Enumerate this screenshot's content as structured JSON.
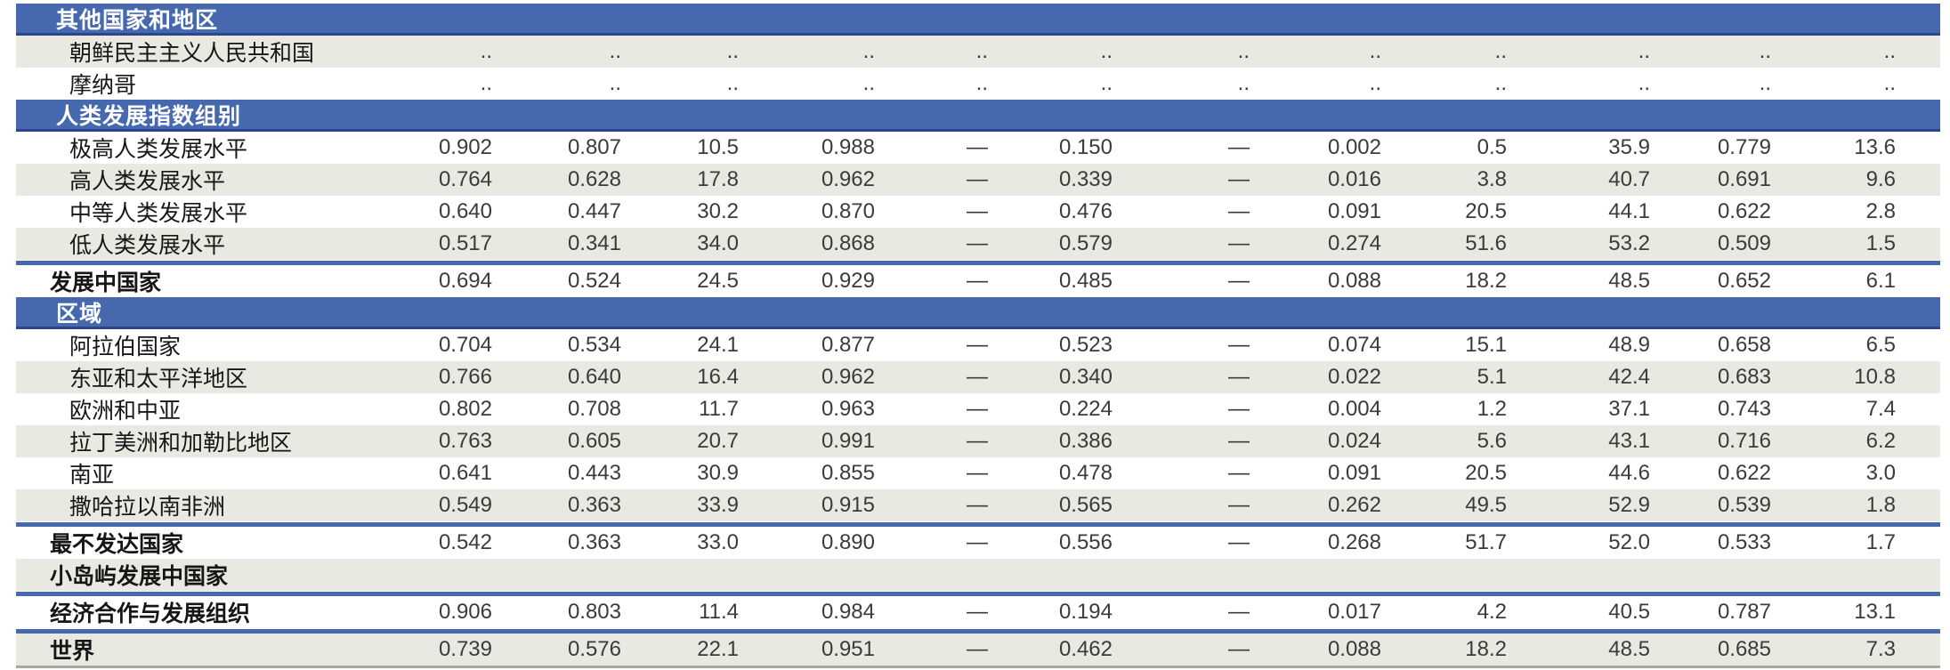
{
  "colors": {
    "header_blue": "#4568af",
    "header_blue_dark": "#2b4689",
    "row_shade": "#e9e8e1",
    "rule_blue": "#4568af",
    "bottom_border": "#a8a89e"
  },
  "table": {
    "columns_count": 12,
    "rows": [
      {
        "type": "section",
        "label": "其他国家和地区"
      },
      {
        "type": "data",
        "label": "朝鲜民主主义人民共和国",
        "rank": "..",
        "bold": false,
        "shaded": true,
        "rule_above": false,
        "values": [
          "..",
          "..",
          "..",
          "..",
          "..",
          "..",
          "..",
          "..",
          "..",
          "..",
          "..",
          ".."
        ]
      },
      {
        "type": "data",
        "label": "摩纳哥",
        "rank": "..",
        "bold": false,
        "shaded": false,
        "rule_above": false,
        "values": [
          "..",
          "..",
          "..",
          "..",
          "..",
          "..",
          "..",
          "..",
          "..",
          "..",
          "..",
          ".."
        ]
      },
      {
        "type": "section",
        "label": "人类发展指数组别"
      },
      {
        "type": "data",
        "label": "极高人类发展水平",
        "rank": "",
        "bold": false,
        "shaded": false,
        "rule_above": false,
        "values": [
          "0.902",
          "0.807",
          "10.5",
          "0.988",
          "—",
          "0.150",
          "—",
          "0.002",
          "0.5",
          "35.9",
          "0.779",
          "13.6"
        ]
      },
      {
        "type": "data",
        "label": "高人类发展水平",
        "rank": "",
        "bold": false,
        "shaded": true,
        "rule_above": false,
        "values": [
          "0.764",
          "0.628",
          "17.8",
          "0.962",
          "—",
          "0.339",
          "—",
          "0.016",
          "3.8",
          "40.7",
          "0.691",
          "9.6"
        ]
      },
      {
        "type": "data",
        "label": "中等人类发展水平",
        "rank": "",
        "bold": false,
        "shaded": false,
        "rule_above": false,
        "values": [
          "0.640",
          "0.447",
          "30.2",
          "0.870",
          "—",
          "0.476",
          "—",
          "0.091",
          "20.5",
          "44.1",
          "0.622",
          "2.8"
        ]
      },
      {
        "type": "data",
        "label": "低人类发展水平",
        "rank": "",
        "bold": false,
        "shaded": true,
        "rule_above": false,
        "values": [
          "0.517",
          "0.341",
          "34.0",
          "0.868",
          "—",
          "0.579",
          "—",
          "0.274",
          "51.6",
          "53.2",
          "0.509",
          "1.5"
        ]
      },
      {
        "type": "data",
        "label": "发展中国家",
        "rank": "",
        "bold": true,
        "shaded": false,
        "rule_above": true,
        "values": [
          "0.694",
          "0.524",
          "24.5",
          "0.929",
          "—",
          "0.485",
          "—",
          "0.088",
          "18.2",
          "48.5",
          "0.652",
          "6.1"
        ]
      },
      {
        "type": "section",
        "label": "区域"
      },
      {
        "type": "data",
        "label": "阿拉伯国家",
        "rank": "",
        "bold": false,
        "shaded": false,
        "rule_above": false,
        "values": [
          "0.704",
          "0.534",
          "24.1",
          "0.877",
          "—",
          "0.523",
          "—",
          "0.074",
          "15.1",
          "48.9",
          "0.658",
          "6.5"
        ]
      },
      {
        "type": "data",
        "label": "东亚和太平洋地区",
        "rank": "",
        "bold": false,
        "shaded": true,
        "rule_above": false,
        "values": [
          "0.766",
          "0.640",
          "16.4",
          "0.962",
          "—",
          "0.340",
          "—",
          "0.022",
          "5.1",
          "42.4",
          "0.683",
          "10.8"
        ]
      },
      {
        "type": "data",
        "label": "欧洲和中亚",
        "rank": "",
        "bold": false,
        "shaded": false,
        "rule_above": false,
        "values": [
          "0.802",
          "0.708",
          "11.7",
          "0.963",
          "—",
          "0.224",
          "—",
          "0.004",
          "1.2",
          "37.1",
          "0.743",
          "7.4"
        ]
      },
      {
        "type": "data",
        "label": "拉丁美洲和加勒比地区",
        "rank": "",
        "bold": false,
        "shaded": true,
        "rule_above": false,
        "values": [
          "0.763",
          "0.605",
          "20.7",
          "0.991",
          "—",
          "0.386",
          "—",
          "0.024",
          "5.6",
          "43.1",
          "0.716",
          "6.2"
        ]
      },
      {
        "type": "data",
        "label": "南亚",
        "rank": "",
        "bold": false,
        "shaded": false,
        "rule_above": false,
        "values": [
          "0.641",
          "0.443",
          "30.9",
          "0.855",
          "—",
          "0.478",
          "—",
          "0.091",
          "20.5",
          "44.6",
          "0.622",
          "3.0"
        ]
      },
      {
        "type": "data",
        "label": "撒哈拉以南非洲",
        "rank": "",
        "bold": false,
        "shaded": true,
        "rule_above": false,
        "values": [
          "0.549",
          "0.363",
          "33.9",
          "0.915",
          "—",
          "0.565",
          "—",
          "0.262",
          "49.5",
          "52.9",
          "0.539",
          "1.8"
        ]
      },
      {
        "type": "data",
        "label": "最不发达国家",
        "rank": "",
        "bold": true,
        "shaded": false,
        "rule_above": true,
        "values": [
          "0.542",
          "0.363",
          "33.0",
          "0.890",
          "—",
          "0.556",
          "—",
          "0.268",
          "51.7",
          "52.0",
          "0.533",
          "1.7"
        ]
      },
      {
        "type": "data",
        "label": "小岛屿发展中国家",
        "rank": "",
        "bold": true,
        "shaded": true,
        "rule_above": false,
        "values": [
          "",
          "",
          "",
          "",
          "",
          "",
          "",
          "",
          "",
          "",
          "",
          ""
        ]
      },
      {
        "type": "data",
        "label": "经济合作与发展组织",
        "rank": "",
        "bold": true,
        "shaded": false,
        "rule_above": true,
        "values": [
          "0.906",
          "0.803",
          "11.4",
          "0.984",
          "—",
          "0.194",
          "—",
          "0.017",
          "4.2",
          "40.5",
          "0.787",
          "13.1"
        ]
      },
      {
        "type": "data",
        "label": "世界",
        "rank": "",
        "bold": true,
        "shaded": true,
        "rule_above": true,
        "values": [
          "0.739",
          "0.576",
          "22.1",
          "0.951",
          "—",
          "0.462",
          "—",
          "0.088",
          "18.2",
          "48.5",
          "0.685",
          "7.3"
        ]
      }
    ]
  }
}
